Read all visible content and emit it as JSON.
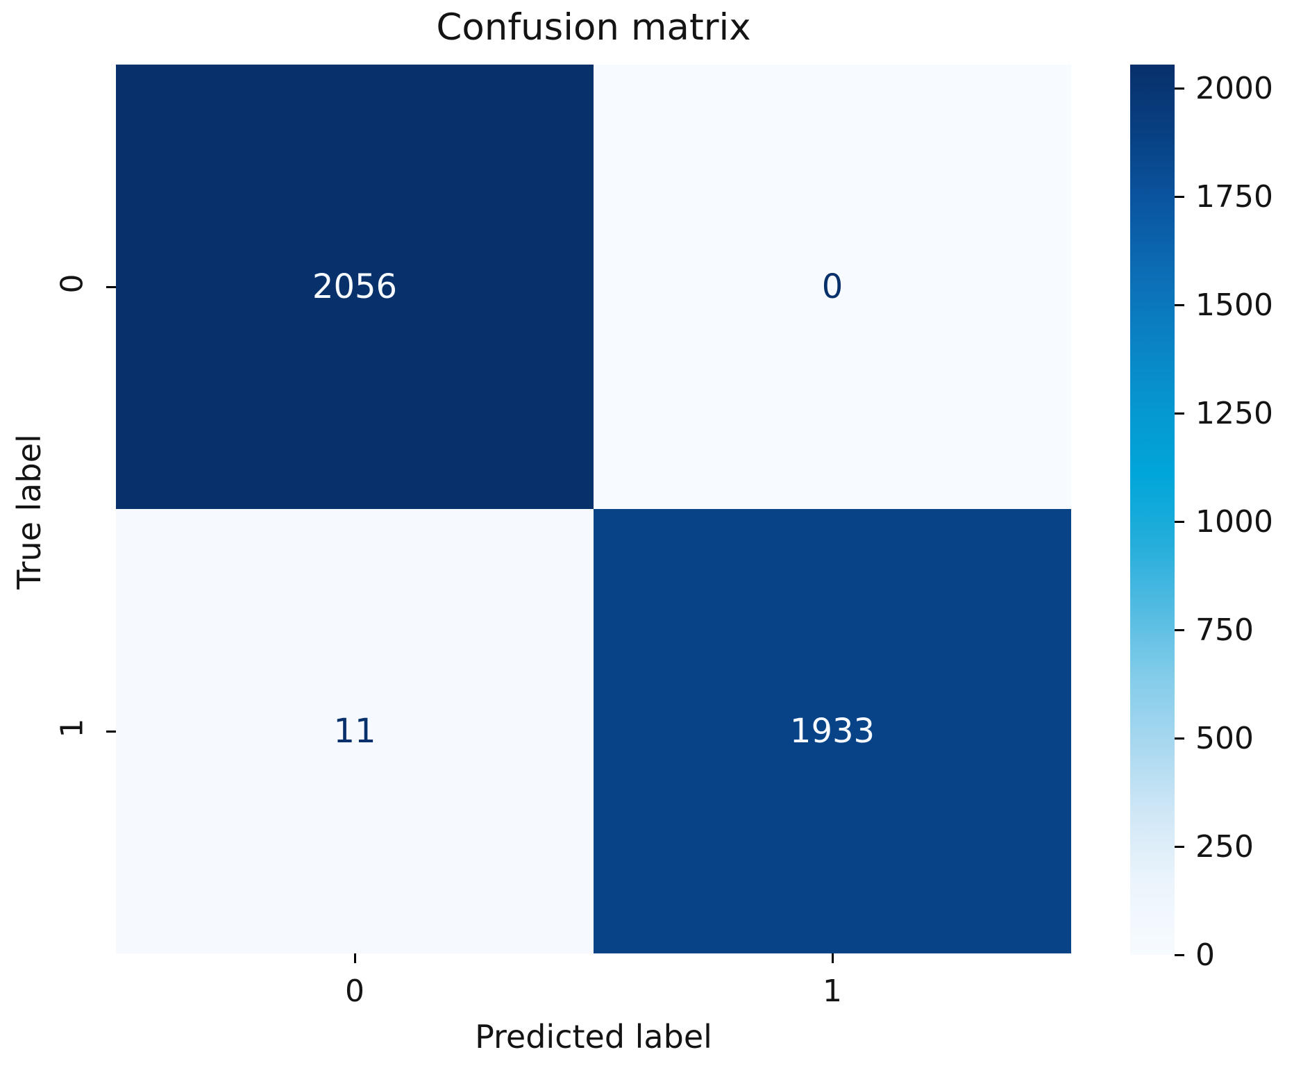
{
  "chart_data": {
    "type": "heatmap",
    "title": "Confusion matrix",
    "xlabel": "Predicted label",
    "ylabel": "True label",
    "x_tick_labels": [
      "0",
      "1"
    ],
    "y_tick_labels": [
      "0",
      "1"
    ],
    "matrix": [
      [
        2056,
        0
      ],
      [
        11,
        1933
      ]
    ],
    "vmin": 0,
    "vmax": 2056,
    "colormap": "Blues",
    "grid": false,
    "legend_position": "colorbar-right",
    "cell_colors": [
      [
        "#08306b",
        "#f7fbff"
      ],
      [
        "#f6faff",
        "#084387"
      ]
    ],
    "cell_text_colors": [
      [
        "#f7fbff",
        "#08306b"
      ],
      [
        "#08306b",
        "#f7fbff"
      ]
    ],
    "colorbar_ticks": [
      2000,
      1750,
      1500,
      1250,
      1000,
      750,
      500,
      250,
      0
    ],
    "colorbar_gradient_top_to_bottom": [
      "#08306b",
      "#084082",
      "#0a55a0",
      "#0c6cb4",
      "#0a82c4",
      "#0697d0",
      "#00a6d9",
      "#25aedb",
      "#55bce2",
      "#85cdea",
      "#abd9f0",
      "#d2e8f7",
      "#edf5fc",
      "#f7fbff"
    ]
  }
}
